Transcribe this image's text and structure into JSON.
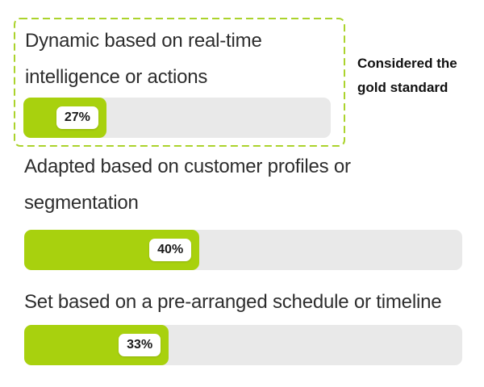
{
  "chart_data": {
    "type": "bar",
    "orientation": "horizontal",
    "categories": [
      "Dynamic based on real-time intelligence or actions",
      "Adapted based on customer profiles or segmentation",
      "Set based on a pre-arranged schedule or timeline"
    ],
    "values": [
      27,
      40,
      33
    ],
    "value_labels": [
      "27%",
      "40%",
      "33%"
    ],
    "unit": "percent",
    "xlim": [
      0,
      100
    ],
    "title": "",
    "annotation": "Considered the gold standard",
    "highlighted_category_index": 0,
    "legend": "none",
    "grid": "off"
  },
  "bars": [
    {
      "label_line1": "Dynamic based on real-time",
      "label_line2": "intelligence or actions",
      "value_label": "27%",
      "highlighted": true
    },
    {
      "label_line1": "Adapted based on customer profiles or",
      "label_line2": "segmentation",
      "value_label": "40%",
      "highlighted": false
    },
    {
      "label_line1": "Set based on a pre-arranged schedule or timeline",
      "value_label": "33%",
      "highlighted": false
    }
  ],
  "annotation": {
    "line1": "Considered the",
    "line2": "gold standard"
  },
  "colors": {
    "bar_fill": "#A8D10E",
    "bar_track": "#E9E9E9",
    "highlight_border": "#ABD32C",
    "label_text": "#2D2D2D",
    "annotation_text": "#111111",
    "badge_bg": "#FFFFFF",
    "badge_text": "#1A1A1A"
  }
}
